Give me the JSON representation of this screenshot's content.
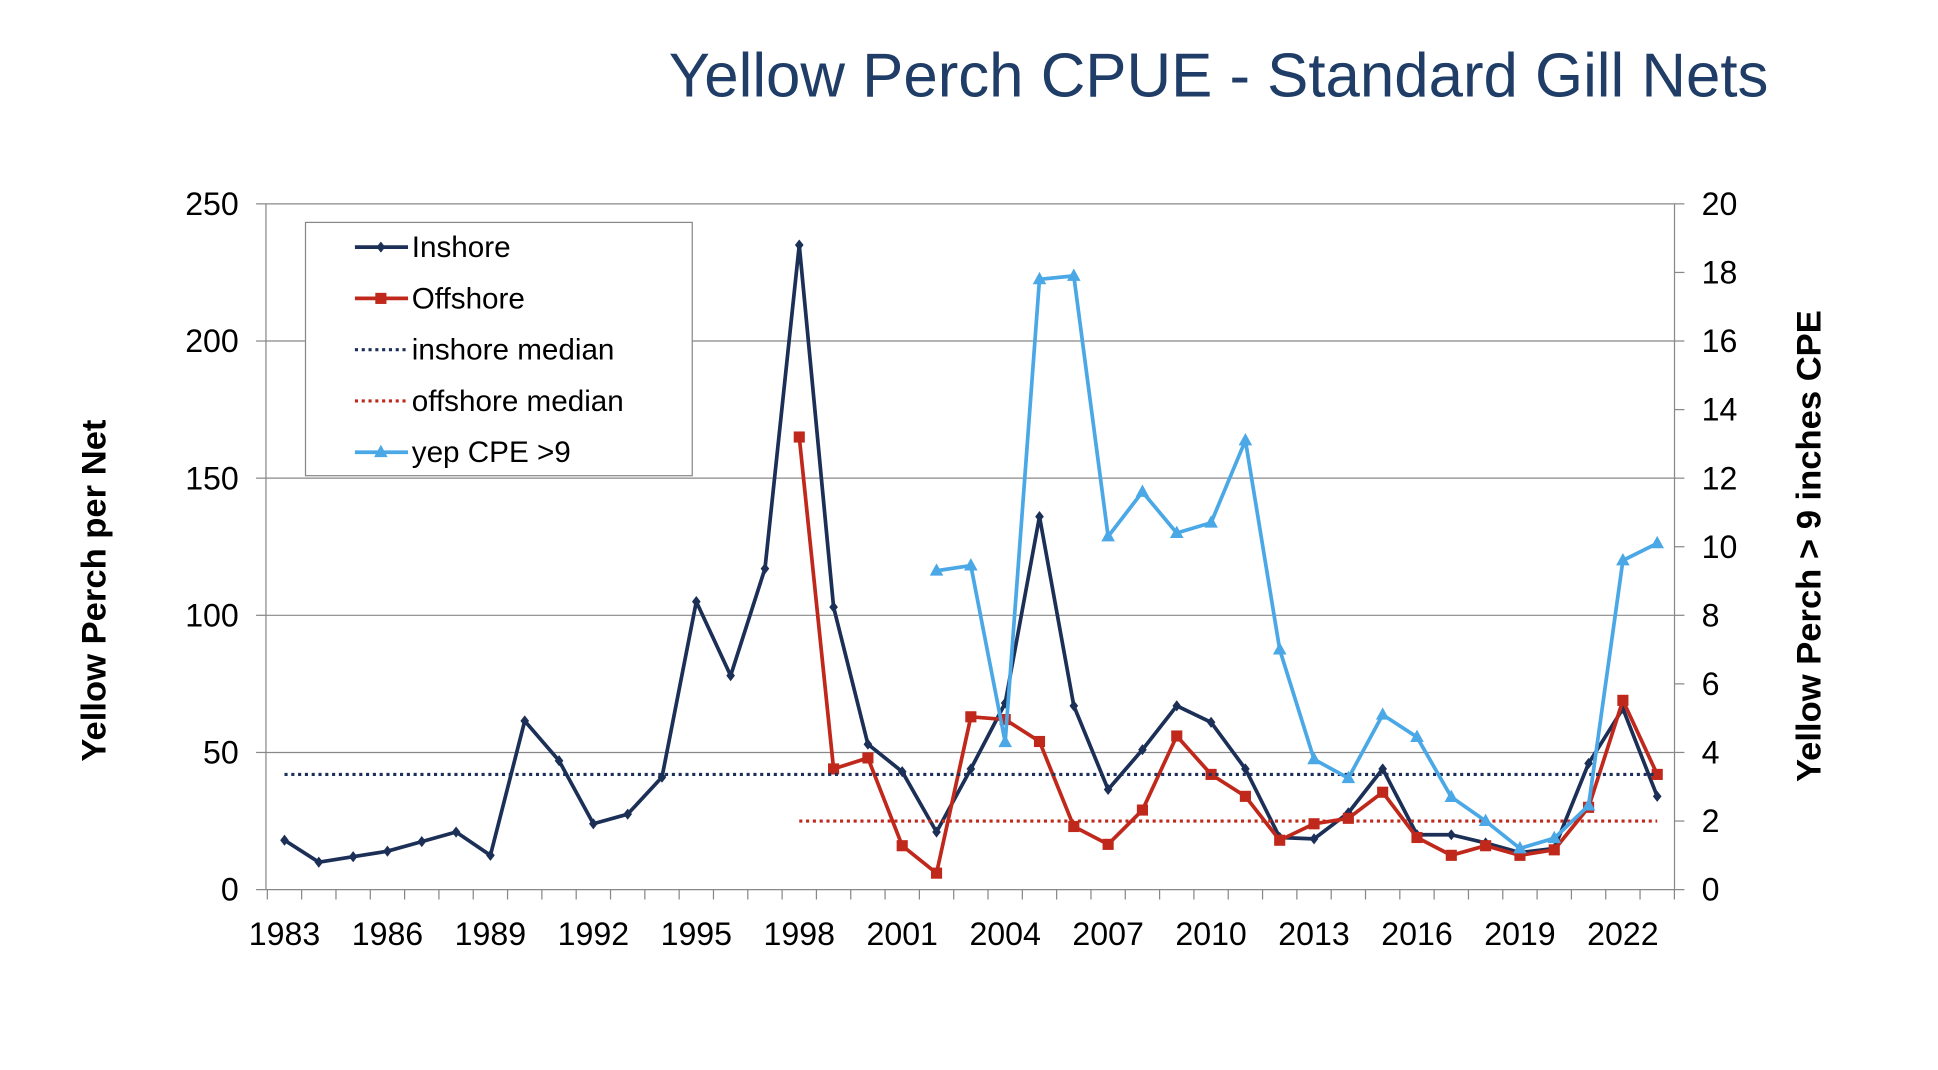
{
  "chart_data": {
    "type": "line",
    "title": "Yellow Perch CPUE - Standard Gill Nets",
    "ylabel": "Yellow Perch per Net",
    "y2label": "Yellow Perch > 9 inches CPE",
    "ylim": [
      0,
      250
    ],
    "y2lim": [
      0,
      20
    ],
    "yticks": [
      0,
      50,
      100,
      150,
      200,
      250
    ],
    "y2ticks": [
      0,
      2,
      4,
      6,
      8,
      10,
      12,
      14,
      16,
      18,
      20
    ],
    "xlim": [
      1983,
      2023
    ],
    "xticks": [
      1983,
      1986,
      1989,
      1992,
      1995,
      1998,
      2001,
      2004,
      2007,
      2010,
      2013,
      2016,
      2019,
      2022
    ],
    "grid": true,
    "legend_position": "top-left",
    "colors": {
      "inshore": "#1b2f57",
      "offshore": "#c0281c",
      "yep": "#4aa8e6",
      "title": "#1f3d66"
    },
    "series": [
      {
        "name": "Inshore",
        "axis": "left",
        "marker": "diamond",
        "x": [
          1983,
          1984,
          1985,
          1986,
          1987,
          1988,
          1989,
          1990,
          1991,
          1992,
          1993,
          1994,
          1995,
          1996,
          1997,
          1998,
          1999,
          2000,
          2001,
          2002,
          2003,
          2004,
          2005,
          2006,
          2007,
          2008,
          2009,
          2010,
          2011,
          2012,
          2013,
          2014,
          2015,
          2016,
          2017,
          2018,
          2019,
          2020,
          2021,
          2022,
          2023
        ],
        "values": [
          18,
          10,
          12,
          14,
          17.5,
          21,
          12.5,
          61.5,
          47,
          24,
          27.5,
          41,
          105,
          78,
          117,
          235,
          103,
          53,
          43,
          21,
          44,
          68,
          136,
          67,
          36.5,
          51,
          67,
          61,
          44,
          19,
          18.5,
          28,
          44,
          20,
          20,
          17,
          13.5,
          15,
          46,
          66,
          34
        ]
      },
      {
        "name": "Offshore",
        "axis": "left",
        "marker": "square",
        "x": [
          1998,
          1999,
          2000,
          2001,
          2002,
          2003,
          2004,
          2005,
          2006,
          2007,
          2008,
          2009,
          2010,
          2011,
          2012,
          2013,
          2014,
          2015,
          2016,
          2017,
          2018,
          2019,
          2020,
          2021,
          2022,
          2023
        ],
        "values": [
          165,
          44,
          48,
          16,
          6,
          63,
          62,
          54,
          23,
          16.5,
          29,
          56,
          42,
          34,
          18,
          24,
          26,
          35.5,
          19,
          12.5,
          16,
          12.5,
          14.5,
          30,
          69,
          42
        ]
      },
      {
        "name": "inshore median",
        "axis": "left",
        "style": "dotted",
        "x": [
          1983,
          2023
        ],
        "values": [
          42,
          42
        ]
      },
      {
        "name": "offshore median",
        "axis": "left",
        "style": "dotted",
        "x": [
          1998,
          2023
        ],
        "values": [
          25,
          25
        ]
      },
      {
        "name": "yep CPE >9",
        "axis": "right",
        "marker": "triangle",
        "x": [
          2002,
          2003,
          2004,
          2005,
          2006,
          2007,
          2008,
          2009,
          2010,
          2011,
          2012,
          2013,
          2014,
          2015,
          2016,
          2017,
          2018,
          2019,
          2020,
          2021,
          2022,
          2023
        ],
        "values": [
          9.3,
          9.45,
          4.3,
          17.8,
          17.9,
          10.3,
          11.6,
          10.4,
          10.7,
          13.1,
          7.0,
          3.8,
          3.25,
          5.1,
          4.45,
          2.7,
          2.0,
          1.2,
          1.5,
          2.45,
          9.6,
          10.1
        ]
      }
    ]
  }
}
